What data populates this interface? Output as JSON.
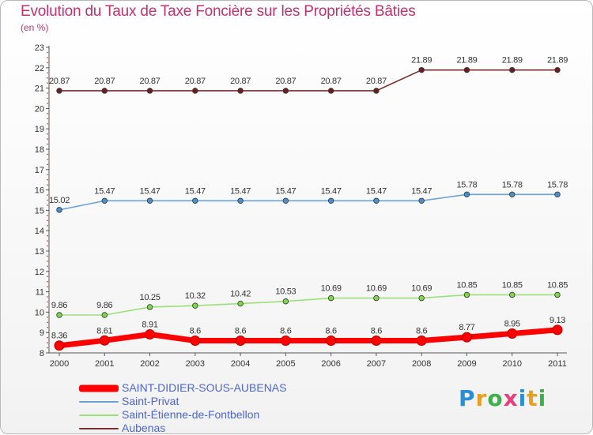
{
  "title": "Evolution du Taux de Taxe Foncière sur les Propriétés Bâties",
  "unit_label": "(en %)",
  "brand": {
    "text": "Proxiti",
    "letter_colors": [
      "#2b8fd8",
      "#e8a020",
      "#3cb04a",
      "#e8407a",
      "#2b8fd8",
      "#e8a020",
      "#3cb04a"
    ]
  },
  "chart_data": {
    "type": "line",
    "title": "Evolution du Taux de Taxe Foncière sur les Propriétés Bâties",
    "ylabel": "(en %)",
    "xlabel": "",
    "ylim": [
      8,
      23
    ],
    "yticks": [
      "8",
      "9",
      "10",
      "11",
      "12",
      "13",
      "14",
      "15",
      "16",
      "17",
      "18",
      "19",
      "20",
      "21",
      "22",
      "23"
    ],
    "categories": [
      "2000",
      "2001",
      "2002",
      "2003",
      "2004",
      "2005",
      "2006",
      "2007",
      "2008",
      "2009",
      "2010",
      "2011"
    ],
    "series": [
      {
        "name": "SAINT-DIDIER-SOUS-AUBENAS",
        "color": "#ff0000",
        "emphasis": true,
        "values": [
          8.36,
          8.61,
          8.91,
          8.6,
          8.6,
          8.6,
          8.6,
          8.6,
          8.6,
          8.77,
          8.95,
          9.13
        ],
        "labels": [
          "8.36",
          "8.61",
          "8.91",
          "8.6",
          "8.6",
          "8.6",
          "8.6",
          "8.6",
          "8.6",
          "8.77",
          "8.95",
          "9.13"
        ]
      },
      {
        "name": "Saint-Privat",
        "color": "#6aa3d4",
        "marker": "#4a8fd0",
        "values": [
          15.02,
          15.47,
          15.47,
          15.47,
          15.47,
          15.47,
          15.47,
          15.47,
          15.47,
          15.78,
          15.78,
          15.78
        ],
        "labels": [
          "15.02",
          "15.47",
          "15.47",
          "15.47",
          "15.47",
          "15.47",
          "15.47",
          "15.47",
          "15.47",
          "15.78",
          "15.78",
          "15.78"
        ]
      },
      {
        "name": "Saint-Étienne-de-Fontbellon",
        "color": "#9be07a",
        "marker": "#7fd84a",
        "values": [
          9.86,
          9.86,
          10.25,
          10.32,
          10.42,
          10.53,
          10.69,
          10.69,
          10.69,
          10.85,
          10.85,
          10.85
        ],
        "labels": [
          "9.86",
          "9.86",
          "10.25",
          "10.32",
          "10.42",
          "10.53",
          "10.69",
          "10.69",
          "10.69",
          "10.85",
          "10.85",
          "10.85"
        ]
      },
      {
        "name": "Aubenas",
        "color": "#7a2e2e",
        "marker": "#6b1f1f",
        "values": [
          20.87,
          20.87,
          20.87,
          20.87,
          20.87,
          20.87,
          20.87,
          20.87,
          21.89,
          21.89,
          21.89,
          21.89
        ],
        "labels": [
          "20.87",
          "20.87",
          "20.87",
          "20.87",
          "20.87",
          "20.87",
          "20.87",
          "20.87",
          "21.89",
          "21.89",
          "21.89",
          "21.89"
        ]
      }
    ],
    "legend": "bottom-left",
    "grid": false
  }
}
